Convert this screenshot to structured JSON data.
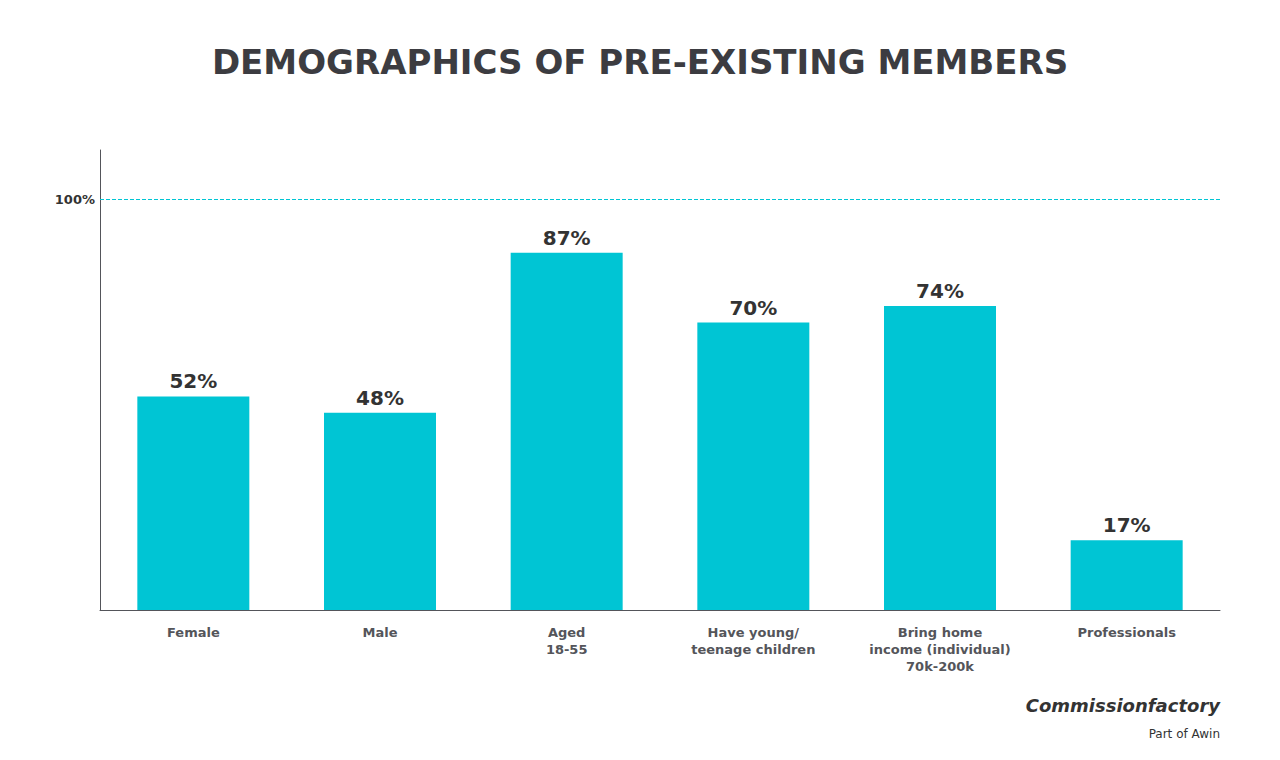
{
  "chart_data": {
    "type": "bar",
    "title": "DEMOGRAPHICS OF PRE-EXISTING MEMBERS",
    "categories": [
      "Female",
      "Male",
      "Aged\n18-55",
      "Have young/\nteenage children",
      "Bring home\nincome (individual)\n70k-200k",
      "Professionals"
    ],
    "values": [
      52,
      48,
      87,
      70,
      74,
      17
    ],
    "value_labels": [
      "52%",
      "48%",
      "87%",
      "70%",
      "74%",
      "17%"
    ],
    "data_labels": true,
    "color": "#00c5d4",
    "ylim": [
      0,
      112
    ],
    "yticks": [],
    "tick_labels": "x",
    "grid": false,
    "reference_line": {
      "y": 100,
      "label": "100%"
    },
    "annotations": [
      "Commissionfactory",
      "Part of Awin"
    ]
  }
}
